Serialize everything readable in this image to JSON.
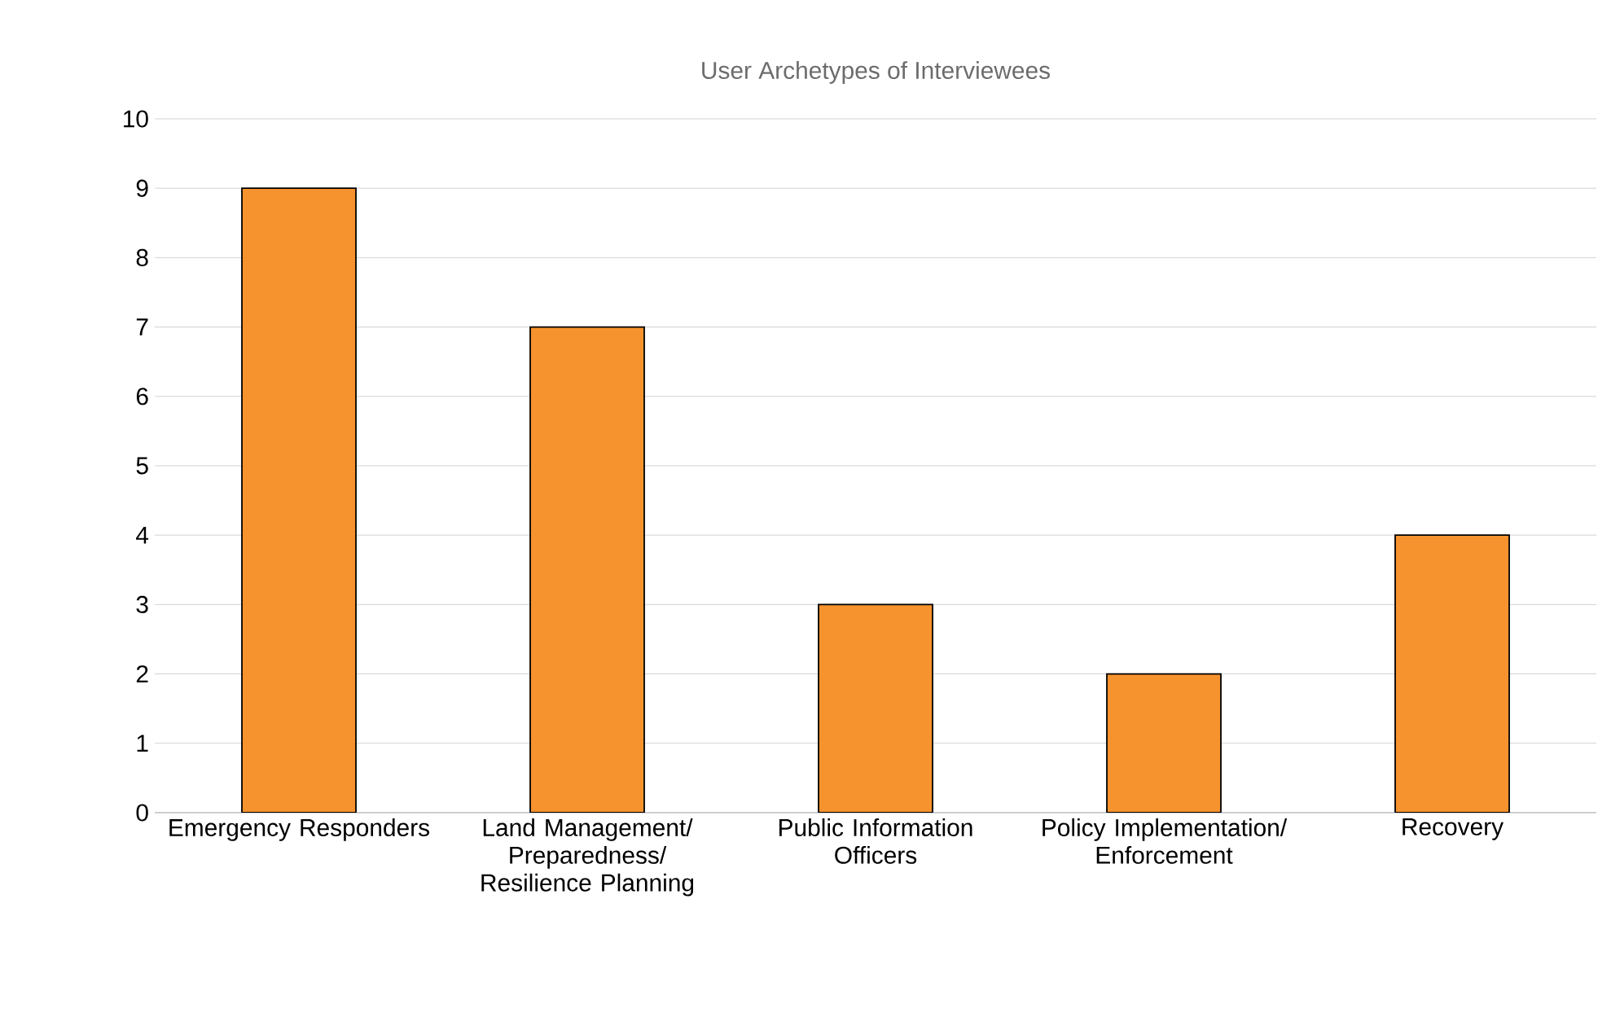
{
  "chart_data": {
    "type": "bar",
    "title": "User Archetypes of Interviewees",
    "categories": [
      "Emergency Responders",
      "Land Management/ Preparedness/ Resilience Planning",
      "Public Information Officers",
      "Policy Implementation/ Enforcement",
      "Recovery"
    ],
    "values": [
      9,
      7,
      3,
      2,
      4
    ],
    "color": "#f7932e",
    "ylim": [
      0,
      10
    ],
    "yticks": [
      0,
      1,
      2,
      3,
      4,
      5,
      6,
      7,
      8,
      9,
      10
    ],
    "grid": "y"
  }
}
